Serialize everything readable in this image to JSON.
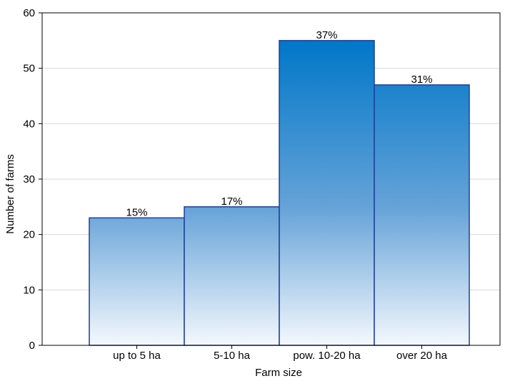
{
  "chart_data": {
    "type": "bar",
    "categories": [
      "up to  5 ha",
      "5-10 ha",
      "pow. 10-20 ha",
      "over  20 ha"
    ],
    "values": [
      23,
      25,
      55,
      47
    ],
    "data_labels": [
      "15%",
      "17%",
      "37%",
      "31%"
    ],
    "title": "",
    "xlabel": "Farm size",
    "ylabel": "Number of farms",
    "ylim": [
      0,
      60
    ],
    "yticks": [
      0,
      10,
      20,
      30,
      40,
      50,
      60
    ],
    "grid": true,
    "colors": {
      "bar_top": "#0077c8",
      "bar_mid": "#66a3d8",
      "bar_bottom": "#f4f8fd",
      "bar_border": "#1f3f9a",
      "grid": "#d9d9d9",
      "axis": "#000000"
    }
  }
}
